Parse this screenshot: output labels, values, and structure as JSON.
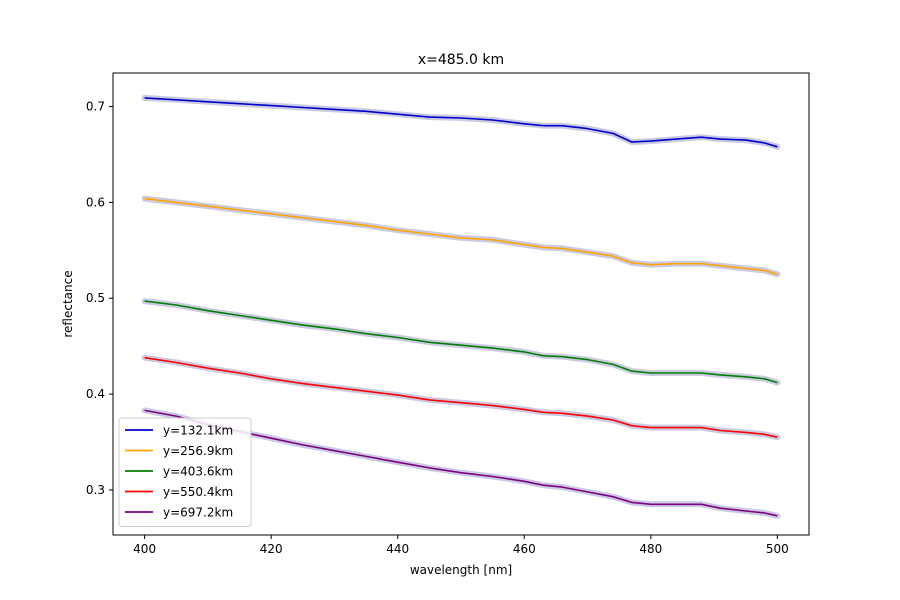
{
  "chart_data": {
    "type": "line",
    "title": "x=485.0 km",
    "xlabel": "wavelength [nm]",
    "ylabel": "reflectance",
    "xlim": [
      395,
      505
    ],
    "ylim": [
      0.253,
      0.735
    ],
    "xticks": [
      400,
      420,
      440,
      460,
      480,
      500
    ],
    "yticks": [
      0.3,
      0.4,
      0.5,
      0.6,
      0.7
    ],
    "grid": false,
    "legend_position": "lower-left",
    "band_color": "#b8b8d8",
    "series": [
      {
        "name": "y=132.1km",
        "color": "#0000cc",
        "points": [
          [
            400,
            0.709
          ],
          [
            405,
            0.707
          ],
          [
            410,
            0.705
          ],
          [
            415,
            0.703
          ],
          [
            420,
            0.701
          ],
          [
            425,
            0.699
          ],
          [
            430,
            0.697
          ],
          [
            435,
            0.695
          ],
          [
            440,
            0.692
          ],
          [
            445,
            0.689
          ],
          [
            450,
            0.688
          ],
          [
            455,
            0.686
          ],
          [
            460,
            0.682
          ],
          [
            463,
            0.68
          ],
          [
            466,
            0.68
          ],
          [
            470,
            0.677
          ],
          [
            474,
            0.672
          ],
          [
            477,
            0.663
          ],
          [
            480,
            0.664
          ],
          [
            484,
            0.666
          ],
          [
            488,
            0.668
          ],
          [
            491,
            0.666
          ],
          [
            495,
            0.665
          ],
          [
            498,
            0.662
          ],
          [
            500,
            0.658
          ]
        ]
      },
      {
        "name": "y=256.9km",
        "color": "#ffa500",
        "points": [
          [
            400,
            0.604
          ],
          [
            405,
            0.6
          ],
          [
            410,
            0.596
          ],
          [
            415,
            0.592
          ],
          [
            420,
            0.588
          ],
          [
            425,
            0.584
          ],
          [
            430,
            0.58
          ],
          [
            435,
            0.576
          ],
          [
            440,
            0.571
          ],
          [
            445,
            0.567
          ],
          [
            450,
            0.563
          ],
          [
            455,
            0.561
          ],
          [
            460,
            0.556
          ],
          [
            463,
            0.553
          ],
          [
            466,
            0.552
          ],
          [
            470,
            0.548
          ],
          [
            474,
            0.544
          ],
          [
            477,
            0.537
          ],
          [
            480,
            0.535
          ],
          [
            484,
            0.536
          ],
          [
            488,
            0.536
          ],
          [
            491,
            0.534
          ],
          [
            495,
            0.531
          ],
          [
            498,
            0.529
          ],
          [
            500,
            0.525
          ]
        ]
      },
      {
        "name": "y=403.6km",
        "color": "#008000",
        "points": [
          [
            400,
            0.497
          ],
          [
            405,
            0.493
          ],
          [
            410,
            0.487
          ],
          [
            415,
            0.482
          ],
          [
            420,
            0.477
          ],
          [
            425,
            0.472
          ],
          [
            430,
            0.468
          ],
          [
            435,
            0.463
          ],
          [
            440,
            0.459
          ],
          [
            445,
            0.454
          ],
          [
            450,
            0.451
          ],
          [
            455,
            0.448
          ],
          [
            460,
            0.444
          ],
          [
            463,
            0.44
          ],
          [
            466,
            0.439
          ],
          [
            470,
            0.436
          ],
          [
            474,
            0.431
          ],
          [
            477,
            0.424
          ],
          [
            480,
            0.422
          ],
          [
            484,
            0.422
          ],
          [
            488,
            0.422
          ],
          [
            491,
            0.42
          ],
          [
            495,
            0.418
          ],
          [
            498,
            0.416
          ],
          [
            500,
            0.412
          ]
        ]
      },
      {
        "name": "y=550.4km",
        "color": "#ff0000",
        "points": [
          [
            400,
            0.438
          ],
          [
            405,
            0.433
          ],
          [
            410,
            0.427
          ],
          [
            415,
            0.422
          ],
          [
            420,
            0.416
          ],
          [
            425,
            0.411
          ],
          [
            430,
            0.407
          ],
          [
            435,
            0.403
          ],
          [
            440,
            0.399
          ],
          [
            445,
            0.394
          ],
          [
            450,
            0.391
          ],
          [
            455,
            0.388
          ],
          [
            460,
            0.384
          ],
          [
            463,
            0.381
          ],
          [
            466,
            0.38
          ],
          [
            470,
            0.377
          ],
          [
            474,
            0.373
          ],
          [
            477,
            0.367
          ],
          [
            480,
            0.365
          ],
          [
            484,
            0.365
          ],
          [
            488,
            0.365
          ],
          [
            491,
            0.362
          ],
          [
            495,
            0.36
          ],
          [
            498,
            0.358
          ],
          [
            500,
            0.355
          ]
        ]
      },
      {
        "name": "y=697.2km",
        "color": "#800080",
        "points": [
          [
            400,
            0.383
          ],
          [
            405,
            0.377
          ],
          [
            410,
            0.368
          ],
          [
            415,
            0.361
          ],
          [
            420,
            0.354
          ],
          [
            425,
            0.347
          ],
          [
            430,
            0.341
          ],
          [
            435,
            0.335
          ],
          [
            440,
            0.329
          ],
          [
            445,
            0.323
          ],
          [
            450,
            0.318
          ],
          [
            455,
            0.314
          ],
          [
            460,
            0.309
          ],
          [
            463,
            0.305
          ],
          [
            466,
            0.303
          ],
          [
            470,
            0.298
          ],
          [
            474,
            0.293
          ],
          [
            477,
            0.287
          ],
          [
            480,
            0.285
          ],
          [
            484,
            0.285
          ],
          [
            488,
            0.285
          ],
          [
            491,
            0.281
          ],
          [
            495,
            0.278
          ],
          [
            498,
            0.276
          ],
          [
            500,
            0.273
          ]
        ]
      }
    ]
  }
}
